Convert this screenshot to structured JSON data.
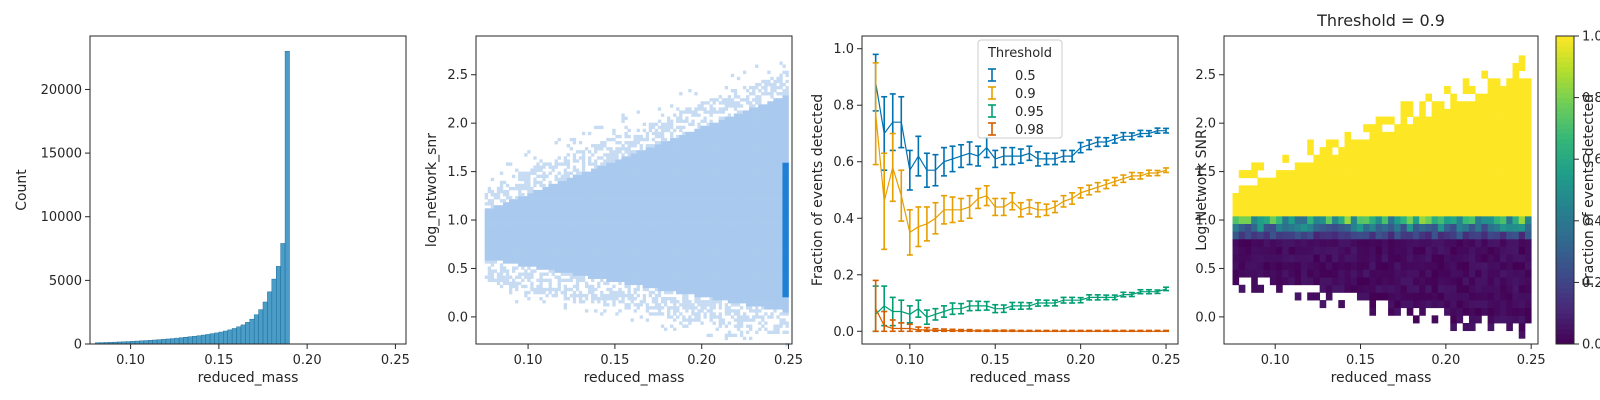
{
  "chart_data": [
    {
      "type": "bar",
      "title": "",
      "xlabel": "reduced_mass",
      "ylabel": "Count",
      "xlim": [
        0.077,
        0.256
      ],
      "ylim": [
        0,
        24200
      ],
      "xticks": [
        "0.10",
        "0.15",
        "0.20",
        "0.25"
      ],
      "yticks": [
        "0",
        "5000",
        "10000",
        "15000",
        "20000"
      ],
      "bar_color": "#2b8cbe",
      "bin_start": 0.08,
      "bin_width": 0.0025,
      "values": [
        100,
        110,
        120,
        130,
        145,
        160,
        175,
        190,
        210,
        230,
        250,
        270,
        290,
        315,
        340,
        365,
        395,
        425,
        460,
        495,
        530,
        570,
        610,
        650,
        700,
        750,
        810,
        870,
        940,
        1020,
        1110,
        1220,
        1350,
        1500,
        1700,
        1950,
        2300,
        2700,
        3300,
        4100,
        5100,
        6100,
        7900,
        23000,
        0
      ]
    },
    {
      "type": "heatmap",
      "title": "",
      "xlabel": "reduced_mass",
      "ylabel": "log_network_snr",
      "xlim": [
        0.07,
        0.252
      ],
      "ylim": [
        -0.28,
        2.9
      ],
      "xticks": [
        "0.10",
        "0.15",
        "0.20",
        "0.25"
      ],
      "yticks": [
        "0.0",
        "0.5",
        "1.0",
        "1.5",
        "2.0",
        "2.5"
      ],
      "color_light": "#c7dcf3",
      "color_mid": "#a9c9ee",
      "color_dense": "#1f7fd6"
    },
    {
      "type": "line",
      "title": "",
      "xlabel": "reduced_mass",
      "ylabel": "Fraction of events detected",
      "xlim": [
        0.072,
        0.257
      ],
      "ylim": [
        -0.045,
        1.045
      ],
      "xticks": [
        "0.10",
        "0.15",
        "0.20",
        "0.25"
      ],
      "yticks": [
        "0.0",
        "0.2",
        "0.4",
        "0.6",
        "0.8",
        "1.0"
      ],
      "legend_title": "Threshold",
      "legend_position": "top-center",
      "x": [
        0.08,
        0.085,
        0.09,
        0.095,
        0.1,
        0.105,
        0.11,
        0.115,
        0.12,
        0.125,
        0.13,
        0.135,
        0.14,
        0.145,
        0.15,
        0.155,
        0.16,
        0.165,
        0.17,
        0.175,
        0.18,
        0.185,
        0.19,
        0.195,
        0.2,
        0.205,
        0.21,
        0.215,
        0.22,
        0.225,
        0.23,
        0.235,
        0.24,
        0.245,
        0.25
      ],
      "series": [
        {
          "name": "0.5",
          "color": "#0072b2",
          "values": [
            0.88,
            0.7,
            0.74,
            0.74,
            0.57,
            0.62,
            0.57,
            0.57,
            0.6,
            0.61,
            0.62,
            0.63,
            0.62,
            0.65,
            0.61,
            0.62,
            0.62,
            0.62,
            0.63,
            0.61,
            0.61,
            0.61,
            0.62,
            0.62,
            0.65,
            0.66,
            0.67,
            0.67,
            0.68,
            0.69,
            0.69,
            0.7,
            0.7,
            0.71,
            0.71
          ],
          "errors": [
            0.1,
            0.13,
            0.1,
            0.09,
            0.07,
            0.07,
            0.06,
            0.055,
            0.05,
            0.045,
            0.04,
            0.04,
            0.035,
            0.035,
            0.03,
            0.03,
            0.03,
            0.025,
            0.025,
            0.025,
            0.02,
            0.02,
            0.02,
            0.02,
            0.018,
            0.017,
            0.016,
            0.015,
            0.014,
            0.013,
            0.012,
            0.011,
            0.01,
            0.009,
            0.008
          ]
        },
        {
          "name": "0.9",
          "color": "#e69f00",
          "values": [
            0.77,
            0.46,
            0.58,
            0.48,
            0.35,
            0.37,
            0.38,
            0.4,
            0.43,
            0.43,
            0.43,
            0.44,
            0.47,
            0.48,
            0.44,
            0.44,
            0.46,
            0.43,
            0.44,
            0.43,
            0.43,
            0.44,
            0.46,
            0.47,
            0.49,
            0.5,
            0.51,
            0.52,
            0.53,
            0.54,
            0.55,
            0.55,
            0.56,
            0.56,
            0.57
          ],
          "errors": [
            0.18,
            0.17,
            0.12,
            0.09,
            0.08,
            0.07,
            0.06,
            0.055,
            0.05,
            0.045,
            0.04,
            0.04,
            0.035,
            0.035,
            0.03,
            0.03,
            0.03,
            0.025,
            0.025,
            0.025,
            0.02,
            0.02,
            0.02,
            0.02,
            0.018,
            0.017,
            0.016,
            0.015,
            0.014,
            0.013,
            0.012,
            0.011,
            0.01,
            0.009,
            0.008
          ]
        },
        {
          "name": "0.95",
          "color": "#009e73",
          "values": [
            0.06,
            0.09,
            0.07,
            0.07,
            0.06,
            0.08,
            0.05,
            0.06,
            0.07,
            0.08,
            0.08,
            0.09,
            0.09,
            0.09,
            0.08,
            0.08,
            0.09,
            0.09,
            0.09,
            0.1,
            0.1,
            0.1,
            0.11,
            0.11,
            0.11,
            0.12,
            0.12,
            0.12,
            0.12,
            0.13,
            0.13,
            0.14,
            0.14,
            0.14,
            0.15
          ],
          "errors": [
            0.1,
            0.07,
            0.05,
            0.04,
            0.03,
            0.03,
            0.025,
            0.02,
            0.02,
            0.02,
            0.018,
            0.017,
            0.016,
            0.015,
            0.014,
            0.013,
            0.012,
            0.012,
            0.011,
            0.011,
            0.01,
            0.01,
            0.01,
            0.01,
            0.009,
            0.009,
            0.009,
            0.008,
            0.008,
            0.008,
            0.007,
            0.007,
            0.007,
            0.006,
            0.006
          ]
        },
        {
          "name": "0.98",
          "color": "#d55e00",
          "values": [
            0.08,
            0.02,
            0.01,
            0.01,
            0.01,
            0.005,
            0.005,
            0.003,
            0.003,
            0.002,
            0.002,
            0.002,
            0.001,
            0.001,
            0.001,
            0.001,
            0.001,
            0,
            0,
            0,
            0,
            0,
            0,
            0,
            0,
            0,
            0,
            0,
            0,
            0,
            0,
            0,
            0,
            0,
            0
          ],
          "errors": [
            0.1,
            0.05,
            0.03,
            0.02,
            0.015,
            0.01,
            0.008,
            0.006,
            0.005,
            0.005,
            0.004,
            0.004,
            0.003,
            0.003,
            0.003,
            0.003,
            0.003,
            0.003,
            0.003,
            0.003,
            0.003,
            0.003,
            0.003,
            0.003,
            0.003,
            0.003,
            0.003,
            0.003,
            0.003,
            0.003,
            0.003,
            0.003,
            0.003,
            0.003,
            0.003
          ]
        }
      ]
    },
    {
      "type": "heatmap",
      "title": "Threshold = 0.9",
      "xlabel": "reduced_mass",
      "ylabel": "Log Network SNR",
      "xlim": [
        0.07,
        0.254
      ],
      "ylim": [
        -0.28,
        2.9
      ],
      "xticks": [
        "0.10",
        "0.15",
        "0.20",
        "0.25"
      ],
      "yticks": [
        "0.0",
        "0.5",
        "1.0",
        "1.5",
        "2.0",
        "2.5"
      ],
      "colorbar_label": "Fraction of events detected",
      "colorbar_ticks": [
        "0.0",
        "0.2",
        "0.4",
        "0.6",
        "0.8",
        "1.0"
      ],
      "colormap": "viridis",
      "color_low": "#440154",
      "color_high": "#fde725"
    }
  ]
}
